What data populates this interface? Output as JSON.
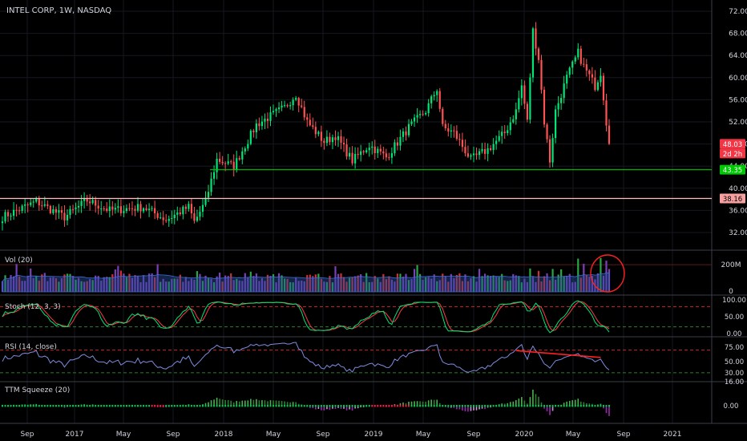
{
  "chart_data": {
    "type": "candlestick",
    "title": "INTEL CORP, 1W, NASDAQ",
    "interval": "1W",
    "exchange": "NASDAQ",
    "price_axis": {
      "ticks": [
        "72.00",
        "68.00",
        "64.00",
        "60.00",
        "56.00",
        "52.00",
        "48.00",
        "44.00",
        "40.00",
        "36.00",
        "32.00"
      ],
      "range": [
        28.6,
        73.6
      ]
    },
    "time_axis": {
      "ticks": [
        "Sep",
        "2017",
        "May",
        "Sep",
        "2018",
        "May",
        "Sep",
        "2019",
        "May",
        "Sep",
        "2020",
        "May",
        "Sep",
        "2021"
      ]
    },
    "price_labels": [
      {
        "text": "48.03",
        "bg": "#f23645",
        "fg": "#ffffff",
        "y": 48.03
      },
      {
        "text": "2d 2h",
        "bg": "#f23645",
        "fg": "#ffffff",
        "y": 46.3
      },
      {
        "text": "43.35",
        "bg": "#00c805",
        "fg": "#ffffff",
        "y": 43.35
      },
      {
        "text": "38.16",
        "bg": "#f7a1a1",
        "fg": "#000000",
        "y": 38.16
      }
    ],
    "horizontal_lines": [
      {
        "y": 43.35,
        "color": "#00c805"
      },
      {
        "y": 38.16,
        "color": "#ffc0c0"
      }
    ],
    "anchors": [
      [
        0,
        34.8
      ],
      [
        12,
        37.6
      ],
      [
        22,
        34.8
      ],
      [
        30,
        37.8
      ],
      [
        38,
        36.0
      ],
      [
        50,
        36.6
      ],
      [
        58,
        34.3
      ],
      [
        66,
        36.6
      ],
      [
        68,
        33.9
      ],
      [
        72,
        37.6
      ],
      [
        76,
        45.2
      ],
      [
        82,
        44.0
      ],
      [
        90,
        51.5
      ],
      [
        100,
        54.6
      ],
      [
        104,
        57.0
      ],
      [
        108,
        52.0
      ],
      [
        114,
        48.4
      ],
      [
        118,
        49.5
      ],
      [
        124,
        45.0
      ],
      [
        130,
        47.8
      ],
      [
        136,
        45.6
      ],
      [
        144,
        51.0
      ],
      [
        150,
        54.0
      ],
      [
        154,
        58.0
      ],
      [
        156,
        51.0
      ],
      [
        160,
        50.0
      ],
      [
        166,
        45.2
      ],
      [
        172,
        47.0
      ],
      [
        178,
        50.0
      ],
      [
        182,
        54.0
      ],
      [
        184,
        58.5
      ],
      [
        186,
        52.0
      ],
      [
        188,
        68.5
      ],
      [
        190,
        63.5
      ],
      [
        192,
        52.0
      ],
      [
        194,
        45.0
      ],
      [
        196,
        54.0
      ],
      [
        200,
        60.0
      ],
      [
        204,
        64.5
      ],
      [
        206,
        62.0
      ],
      [
        210,
        58.5
      ],
      [
        212,
        61.0
      ],
      [
        214,
        52.0
      ],
      [
        215,
        48.0
      ]
    ],
    "volume": {
      "label": "Vol (20)",
      "axis_ticks": [
        "200M",
        "0"
      ],
      "range": [
        0,
        260
      ]
    },
    "stoch": {
      "label": "Stoch (12, 3, 3)",
      "axis_ticks": [
        "100.00",
        "50.00",
        "0.00"
      ],
      "range": [
        0,
        100
      ],
      "levels": [
        80,
        20
      ]
    },
    "rsi": {
      "label": "RSI (14, close)",
      "axis_ticks": [
        "75.00",
        "50.00",
        "30.00"
      ],
      "range": [
        20,
        85
      ],
      "levels": [
        70,
        30
      ],
      "extra_tick": "16.00"
    },
    "squeeze": {
      "label": "TTM Squeeze (20)",
      "axis_ticks": [
        "0.00"
      ]
    },
    "colors": {
      "up": "#00e676",
      "down": "#ff5252",
      "stoch_k": "#00e676",
      "stoch_d": "#ff3d3d",
      "rsi": "#7e8ce0",
      "annotation": "#ff2020"
    }
  }
}
